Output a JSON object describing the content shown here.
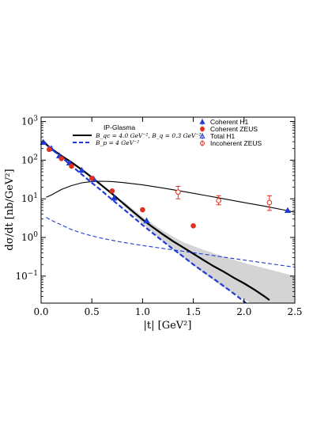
{
  "chart_data": {
    "type": "scatter",
    "title": "",
    "xlabel": "|t| [GeV²]",
    "ylabel": "dσ/dt [nb/GeV²]",
    "xlim": [
      0.0,
      2.5
    ],
    "ylim": [
      0.02,
      1300
    ],
    "y_scale": "log",
    "grid": false,
    "x_ticks": [
      "0.0",
      "0.5",
      "1.0",
      "1.5",
      "2.0",
      "2.5"
    ],
    "y_ticks": [
      {
        "value": 0.1,
        "base": "10",
        "exp": "−1"
      },
      {
        "value": 1,
        "base": "10",
        "exp": "0"
      },
      {
        "value": 10,
        "base": "10",
        "exp": "1"
      },
      {
        "value": 100,
        "base": "10",
        "exp": "2"
      },
      {
        "value": 1000,
        "base": "10",
        "exp": "3"
      }
    ],
    "model_legend": {
      "heading": "IP-Glasma",
      "entries": [
        {
          "label": "B_qc = 4.0 GeV⁻², B_q = 0.3 GeV⁻²",
          "style": "solid",
          "color": "#000000"
        },
        {
          "label": "B_p = 4 GeV⁻²",
          "style": "dashed",
          "color": "#1f3ad6"
        }
      ]
    },
    "data_legend": [
      {
        "label": "Coherent H1",
        "marker": "triangle",
        "color": "#1f3ad6"
      },
      {
        "label": "Coherent ZEUS",
        "marker": "circle",
        "color": "#e03020"
      },
      {
        "label": "Total H1",
        "marker": "open-triangle",
        "color": "#1f3ad6"
      },
      {
        "label": "Incoherent ZEUS",
        "marker": "open-circle",
        "color": "#e03020"
      }
    ],
    "series": [
      {
        "name": "Coherent H1",
        "marker": "triangle",
        "color": "#1f3ad6",
        "x": [
          0.02,
          0.1,
          0.18,
          0.28,
          0.4,
          0.52,
          0.72,
          1.04,
          2.43
        ],
        "y": [
          290,
          200,
          130,
          85,
          55,
          32,
          10.5,
          2.7,
          5.0
        ]
      },
      {
        "name": "Coherent ZEUS",
        "marker": "circle",
        "color": "#e03020",
        "x": [
          0.08,
          0.2,
          0.3,
          0.5,
          0.7,
          1.0,
          1.5
        ],
        "y": [
          190,
          110,
          70,
          34,
          16,
          5.2,
          2.0
        ]
      },
      {
        "name": "Incoherent ZEUS",
        "marker": "open-circle",
        "color": "#e03020",
        "x": [
          1.35,
          1.75,
          2.25
        ],
        "y": [
          15,
          9,
          8
        ],
        "err_low": [
          10,
          7,
          5
        ],
        "err_high": [
          21,
          12,
          12
        ]
      }
    ],
    "curves": [
      {
        "style": "solid-thick",
        "color": "#000000",
        "x": [
          0.02,
          0.1,
          0.2,
          0.3,
          0.4,
          0.5,
          0.6,
          0.7,
          0.8,
          0.9,
          1.0,
          1.1,
          1.2,
          1.3,
          1.4,
          1.5,
          1.6,
          1.7,
          1.8,
          1.9,
          2.0,
          2.1,
          2.2,
          2.25
        ],
        "y": [
          300,
          200,
          130,
          88,
          57,
          36,
          22,
          13.5,
          8.0,
          4.8,
          2.9,
          1.85,
          1.2,
          0.8,
          0.55,
          0.38,
          0.26,
          0.18,
          0.13,
          0.09,
          0.065,
          0.045,
          0.03,
          0.024
        ]
      },
      {
        "style": "dashed-thick",
        "color": "#1f3ad6",
        "x": [
          0.02,
          0.1,
          0.2,
          0.3,
          0.4,
          0.5,
          0.6,
          0.7,
          0.8,
          0.9,
          1.0,
          1.1,
          1.2,
          1.3,
          1.4,
          1.5,
          1.6,
          1.7,
          1.8,
          1.9,
          2.0,
          2.02
        ],
        "y": [
          320,
          195,
          120,
          72,
          43,
          26,
          16,
          9.5,
          5.8,
          3.5,
          2.1,
          1.3,
          0.8,
          0.5,
          0.32,
          0.2,
          0.13,
          0.085,
          0.055,
          0.035,
          0.022,
          0.02
        ]
      },
      {
        "style": "solid-thin",
        "color": "#000000",
        "x": [
          0.05,
          0.1,
          0.2,
          0.3,
          0.4,
          0.5,
          0.6,
          0.7,
          0.8,
          1.0,
          1.2,
          1.4,
          1.6,
          1.8,
          2.0,
          2.2,
          2.4,
          2.5
        ],
        "y": [
          11,
          12.5,
          17.5,
          22,
          26,
          28,
          28.5,
          28,
          26.5,
          23,
          19,
          15.5,
          12.5,
          10,
          8,
          6.5,
          5.1,
          4.5
        ]
      },
      {
        "style": "dashed-thin",
        "color": "#1f3ad6",
        "x": [
          0.05,
          0.1,
          0.2,
          0.3,
          0.4,
          0.5,
          0.6,
          0.8,
          1.0,
          1.2,
          1.4,
          1.6,
          1.8,
          2.0,
          2.2,
          2.5
        ],
        "y": [
          3.3,
          2.8,
          2.1,
          1.6,
          1.3,
          1.1,
          0.95,
          0.75,
          0.62,
          0.52,
          0.44,
          0.37,
          0.31,
          0.26,
          0.22,
          0.17
        ]
      }
    ],
    "uncertainty_band": {
      "color": "#c9c9c9",
      "x": [
        0.8,
        1.0,
        1.2,
        1.4,
        1.6,
        1.8,
        2.0,
        2.2,
        2.5
      ],
      "y_low": [
        7.2,
        2.3,
        0.8,
        0.3,
        0.12,
        0.05,
        0.025,
        0.012,
        0.004
      ],
      "y_high": [
        9.2,
        3.4,
        1.5,
        0.75,
        0.48,
        0.32,
        0.22,
        0.16,
        0.1
      ]
    }
  }
}
